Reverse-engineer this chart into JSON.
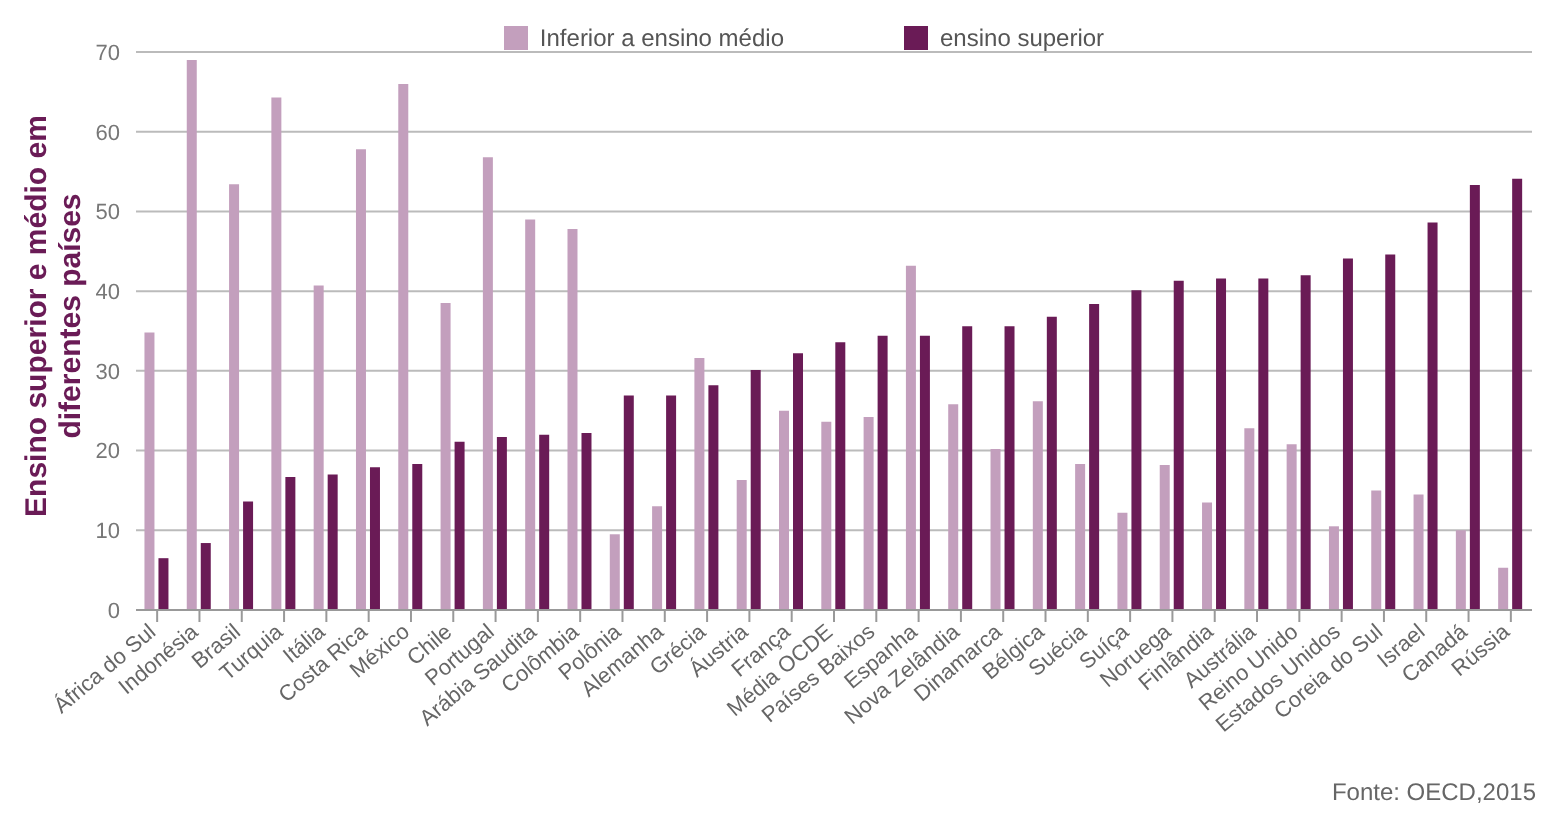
{
  "chart_data": {
    "type": "bar",
    "ylabel": "Ensino superior e médio em diferentes países",
    "categories": [
      "África do Sul",
      "Indonésia",
      "Brasil",
      "Turquia",
      "Itália",
      "Costa Rica",
      "México",
      "Chile",
      "Portugal",
      "Arábia Saudita",
      "Colômbia",
      "Polônia",
      "Alemanha",
      "Grécia",
      "Áustria",
      "França",
      "Média OCDE",
      "Países Baixos",
      "Espanha",
      "Nova Zelândia",
      "Dinamarca",
      "Bélgica",
      "Suécia",
      "Suíça",
      "Noruega",
      "Finlândia",
      "Austrália",
      "Reino Unido",
      "Estados Unidos",
      "Coreia do Sul",
      "Israel",
      "Canadá",
      "Rússia"
    ],
    "series": [
      {
        "name": "Inferior a ensino médio",
        "color": "#c39fbd",
        "values": [
          34.8,
          69,
          53.4,
          64.3,
          40.7,
          57.8,
          66,
          38.5,
          56.8,
          49,
          47.8,
          9.5,
          13,
          31.6,
          16.3,
          25,
          23.6,
          24.2,
          43.2,
          25.8,
          20.2,
          26.2,
          18.3,
          12.2,
          18.2,
          13.5,
          22.8,
          20.8,
          10.5,
          15,
          14.5,
          10,
          5.3
        ]
      },
      {
        "name": "ensino superior",
        "color": "#6a1b56",
        "values": [
          6.5,
          8.4,
          13.6,
          16.7,
          17,
          17.9,
          18.3,
          21.1,
          21.7,
          22,
          22.2,
          26.9,
          26.9,
          28.2,
          30.1,
          32.2,
          33.6,
          34.4,
          34.4,
          35.6,
          35.6,
          36.8,
          38.4,
          40.1,
          41.3,
          41.6,
          41.6,
          42,
          44.1,
          44.6,
          48.6,
          53.3,
          54.1
        ]
      }
    ],
    "ylim": [
      0,
      70
    ],
    "yticks": [
      0,
      10,
      20,
      30,
      40,
      50,
      60,
      70
    ],
    "grid": "y",
    "legend": "top",
    "annotations": [
      "Fonte: OECD,2015"
    ]
  }
}
